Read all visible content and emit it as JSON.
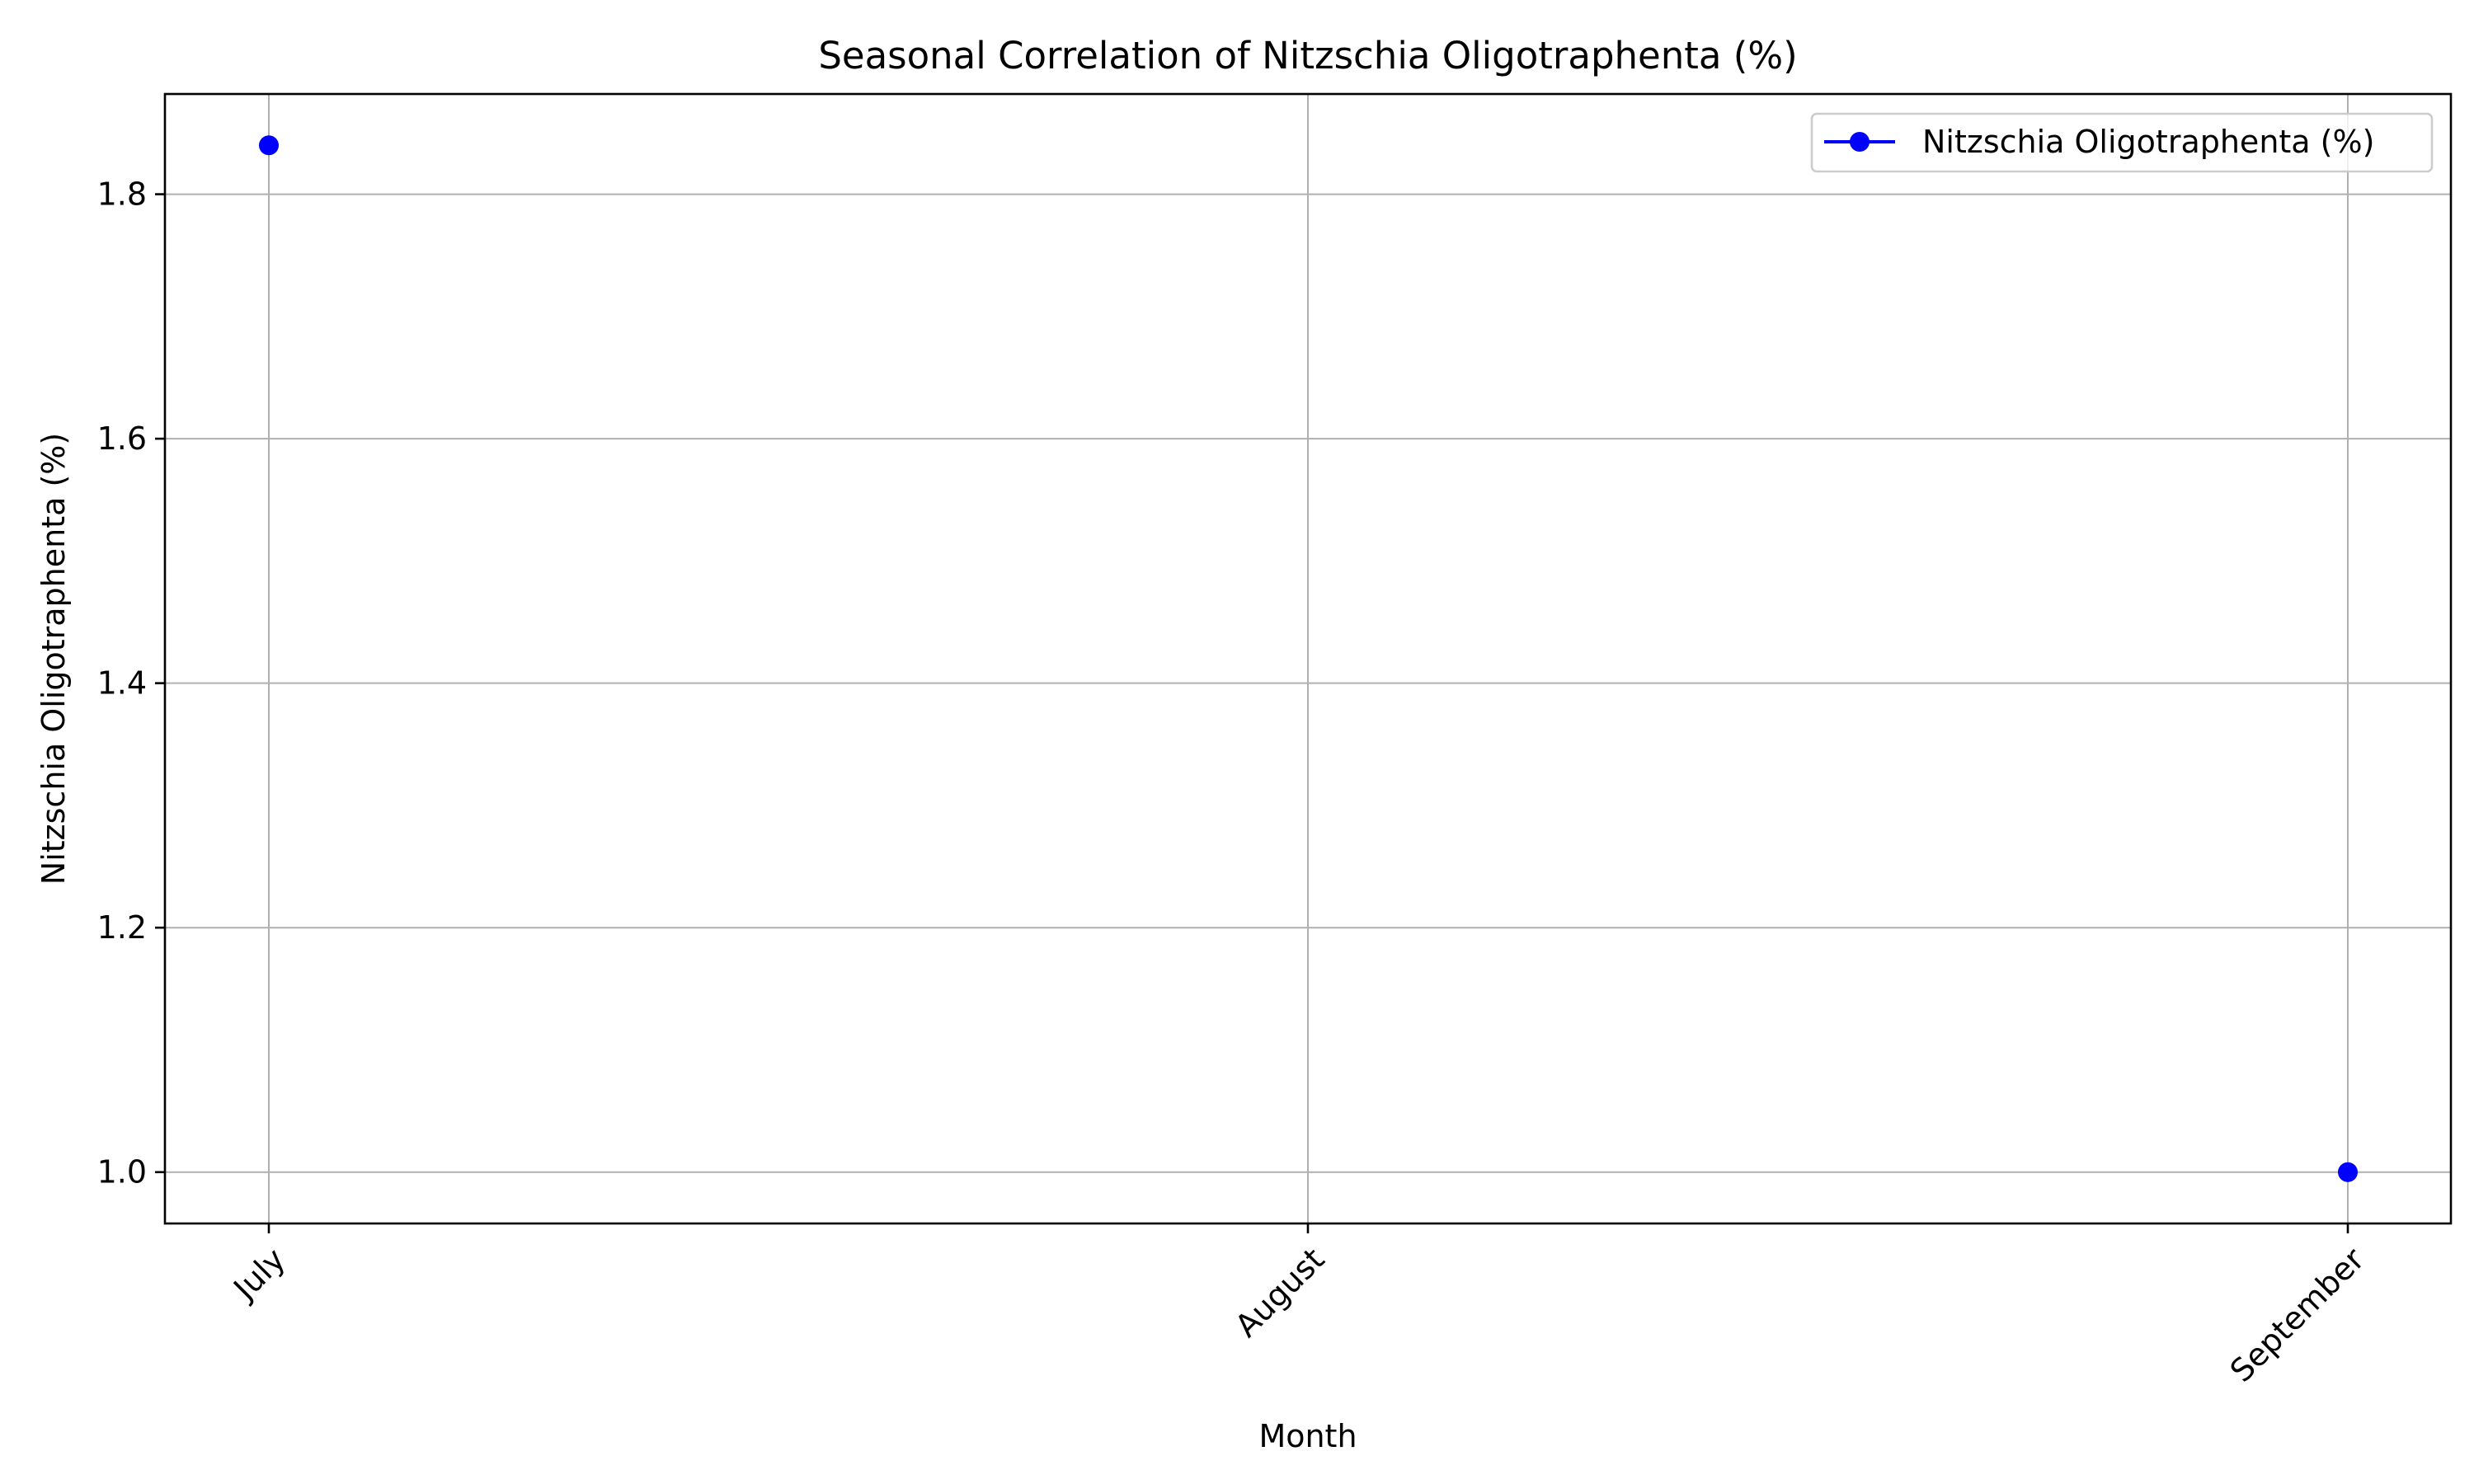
{
  "chart_data": {
    "type": "line",
    "title": "Seasonal Correlation of Nitzschia Oligotraphenta (%)",
    "xlabel": "Month",
    "ylabel": "Nitzschia Oligotraphenta (%)",
    "categories": [
      "July",
      "August",
      "September"
    ],
    "series": [
      {
        "name": "Nitzschia Oligotraphenta (%)",
        "color": "#0000ff",
        "values": [
          1.84,
          null,
          1.0
        ]
      }
    ],
    "ylim": [
      0.958,
      1.882
    ],
    "yticks": [
      "1.0",
      "1.2",
      "1.4",
      "1.6",
      "1.8"
    ],
    "grid": true,
    "legend_position": "top-right"
  }
}
